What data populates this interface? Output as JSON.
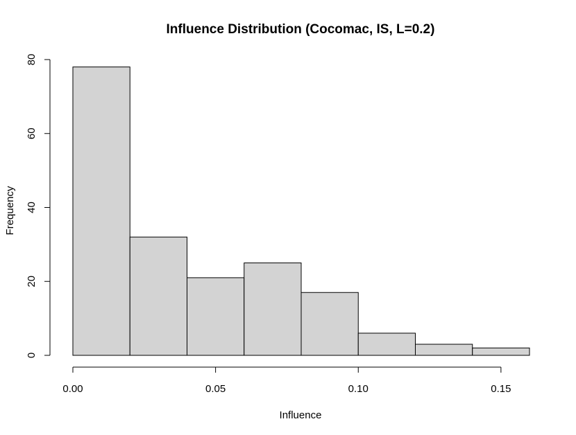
{
  "chart_data": {
    "type": "bar",
    "title": "Influence Distribution (Cocomac, IS, L=0.2)",
    "xlabel": "Influence",
    "ylabel": "Frequency",
    "bins": [
      {
        "start": 0.0,
        "end": 0.02,
        "count": 78
      },
      {
        "start": 0.02,
        "end": 0.04,
        "count": 32
      },
      {
        "start": 0.04,
        "end": 0.06,
        "count": 21
      },
      {
        "start": 0.06,
        "end": 0.08,
        "count": 25
      },
      {
        "start": 0.08,
        "end": 0.1,
        "count": 17
      },
      {
        "start": 0.1,
        "end": 0.12,
        "count": 6
      },
      {
        "start": 0.12,
        "end": 0.14,
        "count": 3
      },
      {
        "start": 0.14,
        "end": 0.16,
        "count": 2
      }
    ],
    "xlim": [
      0.0,
      0.16
    ],
    "ylim": [
      0,
      80
    ],
    "x_ticks": [
      {
        "value": 0.0,
        "label": "0.00"
      },
      {
        "value": 0.05,
        "label": "0.05"
      },
      {
        "value": 0.1,
        "label": "0.10"
      },
      {
        "value": 0.15,
        "label": "0.15"
      }
    ],
    "y_ticks": [
      {
        "value": 0,
        "label": "0"
      },
      {
        "value": 20,
        "label": "20"
      },
      {
        "value": 40,
        "label": "40"
      },
      {
        "value": 60,
        "label": "60"
      },
      {
        "value": 80,
        "label": "80"
      }
    ],
    "grid": false,
    "legend": "none",
    "bar_fill": "#d3d3d3",
    "bar_stroke": "#000000"
  }
}
